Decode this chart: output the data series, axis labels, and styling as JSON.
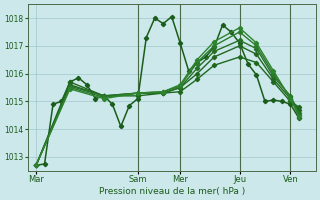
{
  "title": "Pression niveau de la mer( hPa )",
  "background_color": "#cce8ea",
  "grid_color": "#a0c8cc",
  "ylim": [
    1012.5,
    1018.5
  ],
  "yticks": [
    1013,
    1014,
    1015,
    1016,
    1017,
    1018
  ],
  "xlim": [
    0,
    34
  ],
  "day_labels": [
    "Mar",
    "Sam",
    "Mer",
    "Jeu",
    "Ven"
  ],
  "day_positions": [
    1,
    13,
    18,
    25,
    31
  ],
  "day_vlines": [
    13,
    18,
    25,
    31
  ],
  "lines": [
    {
      "x": [
        1,
        2,
        3,
        4,
        5,
        6,
        7,
        8,
        9,
        10,
        11,
        12,
        13,
        14,
        15,
        16,
        17,
        18,
        19,
        20,
        21,
        22,
        23,
        24,
        25,
        26,
        27,
        28,
        29,
        30,
        31,
        32
      ],
      "y": [
        1012.7,
        1012.75,
        1014.9,
        1015.0,
        1015.7,
        1015.85,
        1015.6,
        1015.1,
        1015.2,
        1014.9,
        1014.1,
        1014.85,
        1015.1,
        1017.3,
        1018.0,
        1017.8,
        1018.05,
        1017.1,
        1016.1,
        1016.4,
        1016.6,
        1016.95,
        1017.75,
        1017.5,
        1017.1,
        1016.35,
        1015.95,
        1015.0,
        1015.05,
        1015.0,
        1014.9,
        1014.4
      ],
      "color": "#1a5c1a",
      "lw": 1.1,
      "marker": "D",
      "ms": 2.2,
      "ls": "-"
    },
    {
      "x": [
        1,
        5,
        9,
        13,
        16,
        18,
        20,
        22,
        25,
        27,
        29,
        31,
        32
      ],
      "y": [
        1012.7,
        1015.7,
        1015.2,
        1015.2,
        1015.3,
        1015.35,
        1015.8,
        1016.3,
        1016.6,
        1016.4,
        1015.7,
        1015.0,
        1014.8
      ],
      "color": "#1e681e",
      "lw": 1.0,
      "marker": "D",
      "ms": 2.2,
      "ls": "-"
    },
    {
      "x": [
        1,
        5,
        9,
        13,
        16,
        18,
        20,
        22,
        25,
        27,
        29,
        31,
        32
      ],
      "y": [
        1012.7,
        1015.6,
        1015.2,
        1015.3,
        1015.3,
        1015.5,
        1016.0,
        1016.6,
        1017.0,
        1016.7,
        1015.8,
        1015.1,
        1014.7
      ],
      "color": "#226622",
      "lw": 1.0,
      "marker": "D",
      "ms": 2.2,
      "ls": "-"
    },
    {
      "x": [
        1,
        5,
        9,
        13,
        16,
        18,
        20,
        22,
        25,
        27,
        29,
        31,
        32
      ],
      "y": [
        1012.7,
        1015.55,
        1015.2,
        1015.3,
        1015.3,
        1015.5,
        1016.2,
        1016.8,
        1017.2,
        1016.9,
        1015.9,
        1015.2,
        1014.6
      ],
      "color": "#267026",
      "lw": 1.0,
      "marker": "D",
      "ms": 2.2,
      "ls": "-"
    },
    {
      "x": [
        1,
        5,
        9,
        13,
        16,
        18,
        20,
        22,
        25,
        27,
        29,
        31,
        32
      ],
      "y": [
        1012.7,
        1015.5,
        1015.15,
        1015.3,
        1015.35,
        1015.55,
        1016.4,
        1017.0,
        1017.5,
        1017.0,
        1016.0,
        1015.15,
        1014.5
      ],
      "color": "#2a7a2a",
      "lw": 1.0,
      "marker": "D",
      "ms": 2.2,
      "ls": "-"
    },
    {
      "x": [
        1,
        5,
        9,
        13,
        16,
        18,
        20,
        22,
        25,
        27,
        29,
        31,
        32
      ],
      "y": [
        1012.7,
        1015.45,
        1015.1,
        1015.3,
        1015.35,
        1015.6,
        1016.5,
        1017.15,
        1017.65,
        1017.1,
        1016.1,
        1015.1,
        1014.45
      ],
      "color": "#2e842e",
      "lw": 1.0,
      "marker": "D",
      "ms": 2.2,
      "ls": "-"
    }
  ]
}
